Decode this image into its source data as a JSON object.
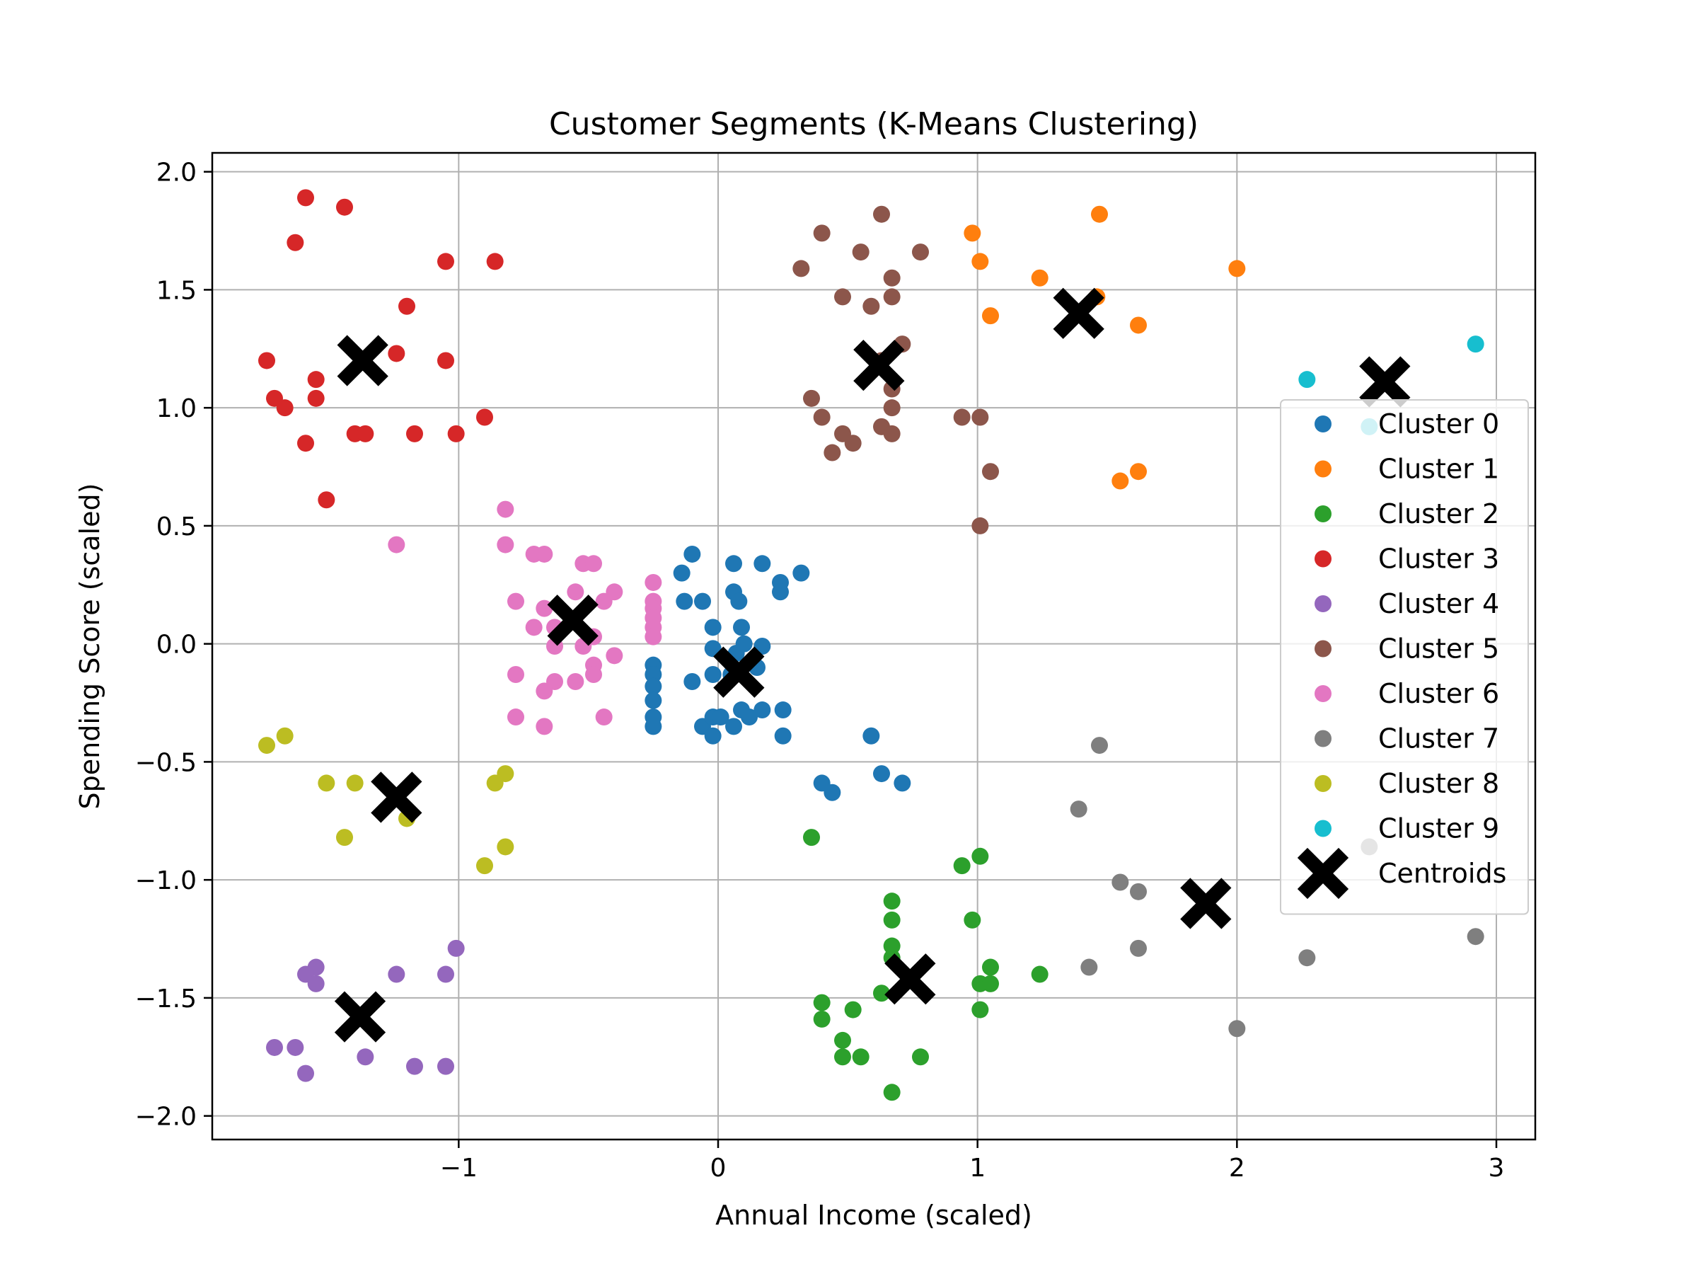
{
  "chart_data": {
    "type": "scatter",
    "title": "Customer Segments (K-Means Clustering)",
    "xlabel": "Annual Income (scaled)",
    "ylabel": "Spending Score (scaled)",
    "xlim": [
      -1.95,
      3.15
    ],
    "ylim": [
      -2.1,
      2.08
    ],
    "xticks": [
      -1,
      0,
      1,
      2,
      3
    ],
    "xtick_labels": [
      "−1",
      "0",
      "1",
      "2",
      "3"
    ],
    "yticks": [
      -2.0,
      -1.5,
      -1.0,
      -0.5,
      0.0,
      0.5,
      1.0,
      1.5,
      2.0
    ],
    "ytick_labels": [
      "−2.0",
      "−1.5",
      "−1.0",
      "−0.5",
      "0.0",
      "0.5",
      "1.0",
      "1.5",
      "2.0"
    ],
    "grid": true,
    "legend_position": "right",
    "series": [
      {
        "name": "Cluster 0",
        "color": "#1f77b4",
        "points": [
          [
            -0.1,
            0.38
          ],
          [
            -0.14,
            0.3
          ],
          [
            0.06,
            0.34
          ],
          [
            0.17,
            0.34
          ],
          [
            0.32,
            0.3
          ],
          [
            0.24,
            0.26
          ],
          [
            0.24,
            0.22
          ],
          [
            -0.13,
            0.18
          ],
          [
            -0.06,
            0.18
          ],
          [
            0.06,
            0.22
          ],
          [
            0.08,
            0.18
          ],
          [
            -0.02,
            0.07
          ],
          [
            0.09,
            0.07
          ],
          [
            -0.02,
            -0.02
          ],
          [
            0.07,
            -0.04
          ],
          [
            0.17,
            -0.01
          ],
          [
            0.1,
            0.0
          ],
          [
            -0.25,
            -0.09
          ],
          [
            -0.25,
            -0.13
          ],
          [
            -0.25,
            -0.18
          ],
          [
            -0.25,
            -0.24
          ],
          [
            -0.25,
            -0.31
          ],
          [
            -0.25,
            -0.35
          ],
          [
            -0.1,
            -0.16
          ],
          [
            -0.02,
            -0.13
          ],
          [
            0.05,
            -0.13
          ],
          [
            0.15,
            -0.1
          ],
          [
            -0.06,
            -0.35
          ],
          [
            -0.02,
            -0.31
          ],
          [
            0.01,
            -0.31
          ],
          [
            0.06,
            -0.35
          ],
          [
            0.09,
            -0.28
          ],
          [
            0.12,
            -0.31
          ],
          [
            0.17,
            -0.28
          ],
          [
            0.25,
            -0.28
          ],
          [
            -0.02,
            -0.39
          ],
          [
            0.25,
            -0.39
          ],
          [
            0.59,
            -0.39
          ],
          [
            0.4,
            -0.59
          ],
          [
            0.44,
            -0.63
          ],
          [
            0.63,
            -0.55
          ],
          [
            0.71,
            -0.59
          ]
        ]
      },
      {
        "name": "Cluster 1",
        "color": "#ff7f0e",
        "points": [
          [
            0.98,
            1.74
          ],
          [
            1.47,
            1.82
          ],
          [
            1.01,
            1.62
          ],
          [
            1.24,
            1.55
          ],
          [
            2.0,
            1.59
          ],
          [
            1.05,
            1.39
          ],
          [
            1.62,
            1.35
          ],
          [
            1.46,
            1.47
          ],
          [
            1.55,
            0.69
          ],
          [
            1.62,
            0.73
          ]
        ]
      },
      {
        "name": "Cluster 2",
        "color": "#2ca02c",
        "points": [
          [
            0.36,
            -0.82
          ],
          [
            0.94,
            -0.94
          ],
          [
            1.01,
            -0.9
          ],
          [
            0.67,
            -1.09
          ],
          [
            0.67,
            -1.17
          ],
          [
            0.98,
            -1.17
          ],
          [
            0.67,
            -1.28
          ],
          [
            0.67,
            -1.33
          ],
          [
            1.05,
            -1.37
          ],
          [
            1.01,
            -1.44
          ],
          [
            1.05,
            -1.44
          ],
          [
            1.24,
            -1.4
          ],
          [
            0.63,
            -1.48
          ],
          [
            0.4,
            -1.52
          ],
          [
            0.4,
            -1.59
          ],
          [
            0.52,
            -1.55
          ],
          [
            1.01,
            -1.55
          ],
          [
            0.48,
            -1.68
          ],
          [
            0.48,
            -1.75
          ],
          [
            0.55,
            -1.75
          ],
          [
            0.78,
            -1.75
          ],
          [
            0.67,
            -1.9
          ]
        ]
      },
      {
        "name": "Cluster 3",
        "color": "#d62728",
        "points": [
          [
            -1.59,
            1.89
          ],
          [
            -1.44,
            1.85
          ],
          [
            -1.63,
            1.7
          ],
          [
            -1.05,
            1.62
          ],
          [
            -0.86,
            1.62
          ],
          [
            -1.2,
            1.43
          ],
          [
            -1.74,
            1.2
          ],
          [
            -1.24,
            1.23
          ],
          [
            -1.05,
            1.2
          ],
          [
            -1.71,
            1.04
          ],
          [
            -1.55,
            1.12
          ],
          [
            -1.55,
            1.04
          ],
          [
            -1.67,
            1.0
          ],
          [
            -0.9,
            0.96
          ],
          [
            -1.4,
            0.89
          ],
          [
            -1.36,
            0.89
          ],
          [
            -1.17,
            0.89
          ],
          [
            -1.01,
            0.89
          ],
          [
            -1.59,
            0.85
          ],
          [
            -1.51,
            0.61
          ]
        ]
      },
      {
        "name": "Cluster 4",
        "color": "#9467bd",
        "points": [
          [
            -1.01,
            -1.29
          ],
          [
            -1.55,
            -1.37
          ],
          [
            -1.59,
            -1.4
          ],
          [
            -1.55,
            -1.44
          ],
          [
            -1.24,
            -1.4
          ],
          [
            -1.05,
            -1.4
          ],
          [
            -1.71,
            -1.71
          ],
          [
            -1.63,
            -1.71
          ],
          [
            -1.36,
            -1.75
          ],
          [
            -1.17,
            -1.79
          ],
          [
            -1.05,
            -1.79
          ],
          [
            -1.59,
            -1.82
          ]
        ]
      },
      {
        "name": "Cluster 5",
        "color": "#8c564b",
        "points": [
          [
            0.4,
            1.74
          ],
          [
            0.63,
            1.82
          ],
          [
            0.55,
            1.66
          ],
          [
            0.78,
            1.66
          ],
          [
            0.32,
            1.59
          ],
          [
            0.67,
            1.55
          ],
          [
            0.48,
            1.47
          ],
          [
            0.67,
            1.47
          ],
          [
            0.59,
            1.43
          ],
          [
            0.71,
            1.27
          ],
          [
            0.63,
            1.2
          ],
          [
            0.67,
            1.08
          ],
          [
            0.36,
            1.04
          ],
          [
            0.67,
            1.0
          ],
          [
            0.4,
            0.96
          ],
          [
            0.63,
            0.92
          ],
          [
            0.94,
            0.96
          ],
          [
            1.01,
            0.96
          ],
          [
            0.48,
            0.89
          ],
          [
            0.67,
            0.89
          ],
          [
            0.52,
            0.85
          ],
          [
            0.44,
            0.81
          ],
          [
            1.05,
            0.73
          ],
          [
            1.01,
            0.5
          ]
        ]
      },
      {
        "name": "Cluster 6",
        "color": "#e377c2",
        "points": [
          [
            -0.82,
            0.57
          ],
          [
            -1.24,
            0.42
          ],
          [
            -0.82,
            0.42
          ],
          [
            -0.71,
            0.38
          ],
          [
            -0.67,
            0.38
          ],
          [
            -0.52,
            0.34
          ],
          [
            -0.48,
            0.34
          ],
          [
            -0.25,
            0.26
          ],
          [
            -0.55,
            0.22
          ],
          [
            -0.44,
            0.18
          ],
          [
            -0.4,
            0.22
          ],
          [
            -0.78,
            0.18
          ],
          [
            -0.25,
            0.18
          ],
          [
            -0.25,
            0.15
          ],
          [
            -0.67,
            0.15
          ],
          [
            -0.25,
            0.11
          ],
          [
            -0.25,
            0.07
          ],
          [
            -0.25,
            0.03
          ],
          [
            -0.71,
            0.07
          ],
          [
            -0.63,
            0.07
          ],
          [
            -0.48,
            0.03
          ],
          [
            -0.63,
            -0.01
          ],
          [
            -0.52,
            -0.01
          ],
          [
            -0.48,
            -0.09
          ],
          [
            -0.4,
            -0.05
          ],
          [
            -0.78,
            -0.13
          ],
          [
            -0.63,
            -0.16
          ],
          [
            -0.55,
            -0.16
          ],
          [
            -0.48,
            -0.13
          ],
          [
            -0.67,
            -0.2
          ],
          [
            -0.78,
            -0.31
          ],
          [
            -0.67,
            -0.35
          ],
          [
            -0.44,
            -0.31
          ]
        ]
      },
      {
        "name": "Cluster 7",
        "color": "#7f7f7f",
        "points": [
          [
            1.47,
            -0.43
          ],
          [
            1.39,
            -0.7
          ],
          [
            2.51,
            -0.86
          ],
          [
            1.55,
            -1.01
          ],
          [
            1.62,
            -1.05
          ],
          [
            2.92,
            -1.24
          ],
          [
            1.62,
            -1.29
          ],
          [
            2.27,
            -1.33
          ],
          [
            1.43,
            -1.37
          ],
          [
            2.0,
            -1.63
          ]
        ]
      },
      {
        "name": "Cluster 8",
        "color": "#bcbd22",
        "points": [
          [
            -1.74,
            -0.43
          ],
          [
            -1.67,
            -0.39
          ],
          [
            -1.51,
            -0.59
          ],
          [
            -1.4,
            -0.59
          ],
          [
            -0.86,
            -0.59
          ],
          [
            -0.82,
            -0.55
          ],
          [
            -1.2,
            -0.74
          ],
          [
            -1.44,
            -0.82
          ],
          [
            -0.82,
            -0.86
          ],
          [
            -0.9,
            -0.94
          ]
        ]
      },
      {
        "name": "Cluster 9",
        "color": "#17becf",
        "points": [
          [
            2.92,
            1.27
          ],
          [
            2.27,
            1.12
          ],
          [
            2.51,
            0.92
          ]
        ]
      }
    ],
    "centroids": {
      "name": "Centroids",
      "color": "#000000",
      "points": [
        [
          0.08,
          -0.12
        ],
        [
          1.39,
          1.4
        ],
        [
          0.74,
          -1.42
        ],
        [
          -1.37,
          1.2
        ],
        [
          -1.38,
          -1.58
        ],
        [
          0.62,
          1.18
        ],
        [
          -0.56,
          0.1
        ],
        [
          1.88,
          -1.1
        ],
        [
          -1.24,
          -0.65
        ],
        [
          2.57,
          1.11
        ]
      ]
    }
  }
}
